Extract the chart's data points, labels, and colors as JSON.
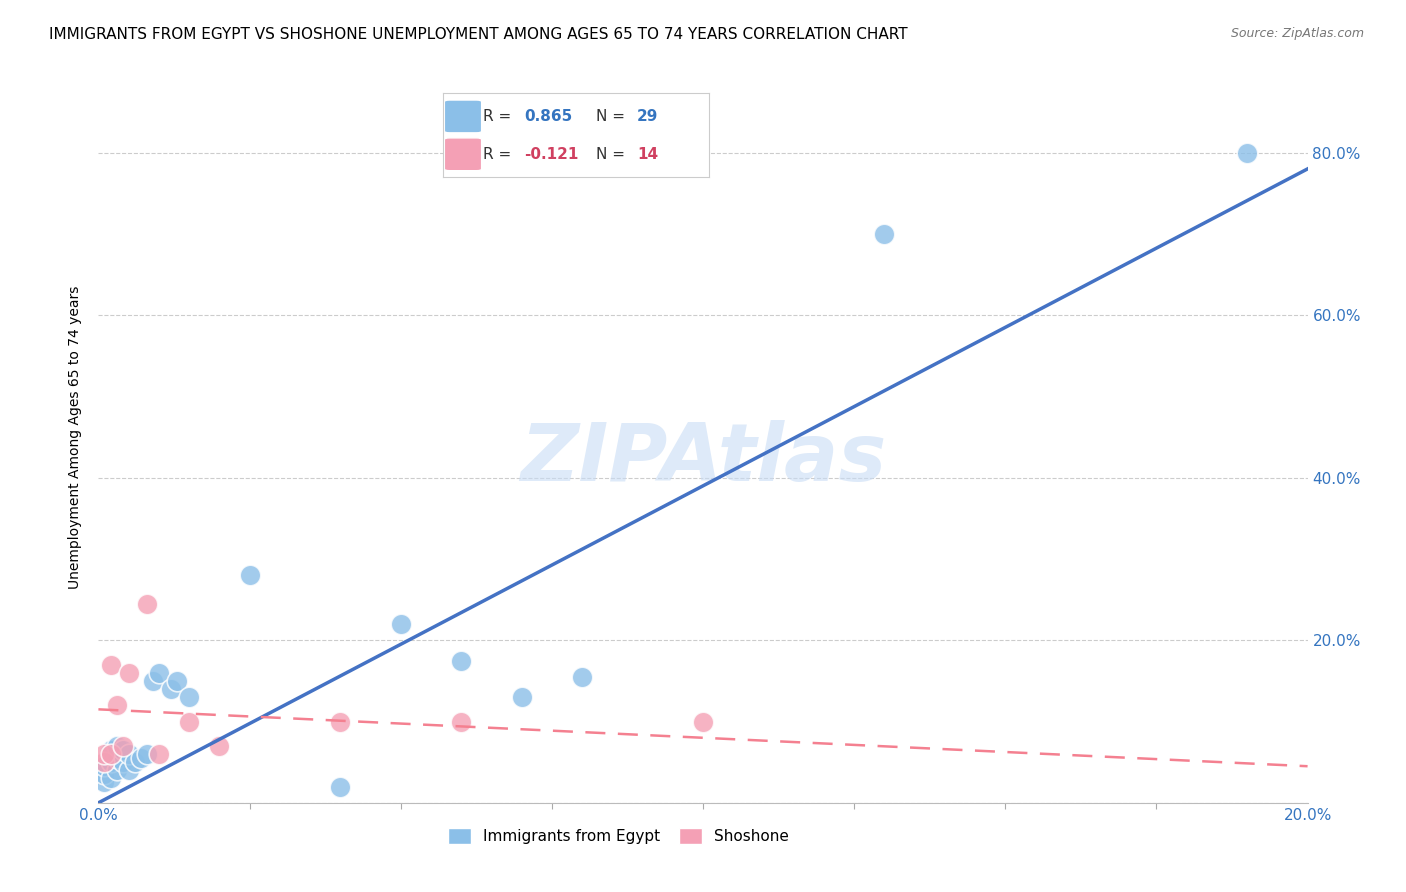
{
  "title": "IMMIGRANTS FROM EGYPT VS SHOSHONE UNEMPLOYMENT AMONG AGES 65 TO 74 YEARS CORRELATION CHART",
  "source": "Source: ZipAtlas.com",
  "ylabel": "Unemployment Among Ages 65 to 74 years",
  "watermark": "ZIPAtlas",
  "xlim": [
    0.0,
    0.2
  ],
  "ylim": [
    0.0,
    0.9
  ],
  "blue_color": "#8BBFE8",
  "pink_color": "#F4A0B5",
  "blue_line_color": "#4472C4",
  "pink_line_color": "#F48090",
  "r_blue": 0.865,
  "n_blue": 29,
  "r_pink": -0.121,
  "n_pink": 14,
  "blue_scatter_x": [
    0.001,
    0.001,
    0.001,
    0.002,
    0.002,
    0.002,
    0.003,
    0.003,
    0.003,
    0.004,
    0.004,
    0.005,
    0.005,
    0.006,
    0.007,
    0.008,
    0.009,
    0.01,
    0.012,
    0.013,
    0.015,
    0.025,
    0.04,
    0.05,
    0.06,
    0.07,
    0.08,
    0.13,
    0.19
  ],
  "blue_scatter_y": [
    0.025,
    0.035,
    0.045,
    0.03,
    0.05,
    0.065,
    0.04,
    0.055,
    0.07,
    0.05,
    0.065,
    0.04,
    0.06,
    0.05,
    0.055,
    0.06,
    0.15,
    0.16,
    0.14,
    0.15,
    0.13,
    0.28,
    0.02,
    0.22,
    0.175,
    0.13,
    0.155,
    0.7,
    0.8
  ],
  "pink_scatter_x": [
    0.001,
    0.001,
    0.002,
    0.002,
    0.003,
    0.004,
    0.005,
    0.008,
    0.01,
    0.015,
    0.02,
    0.04,
    0.06,
    0.1
  ],
  "pink_scatter_y": [
    0.05,
    0.06,
    0.06,
    0.17,
    0.12,
    0.07,
    0.16,
    0.245,
    0.06,
    0.1,
    0.07,
    0.1,
    0.1,
    0.1
  ],
  "blue_line_x": [
    0.0,
    0.2
  ],
  "blue_line_y": [
    0.0,
    0.78
  ],
  "pink_line_x": [
    0.0,
    0.2
  ],
  "pink_line_y": [
    0.115,
    0.045
  ],
  "background_color": "#ffffff",
  "title_fontsize": 11,
  "axis_label_fontsize": 10,
  "tick_fontsize": 11,
  "right_ytick_values": [
    0.2,
    0.4,
    0.6,
    0.8
  ],
  "right_ytick_labels": [
    "20.0%",
    "40.0%",
    "60.0%",
    "80.0%"
  ]
}
